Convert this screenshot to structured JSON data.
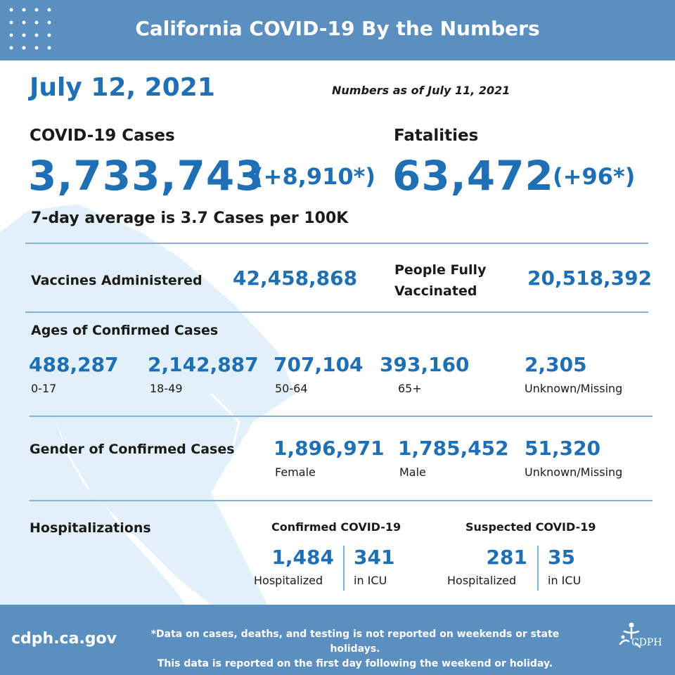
{
  "header": {
    "title": "California COVID-19 By the Numbers"
  },
  "date": "July 12, 2021",
  "as_of": "Numbers as of July 11, 2021",
  "cases": {
    "label": "COVID-19 Cases",
    "total": "3,733,743",
    "change": "(+8,910*)",
    "average": "7-day average is 3.7 Cases per 100K"
  },
  "fatalities": {
    "label": "Fatalities",
    "total": "63,472",
    "change": "(+96*)"
  },
  "vaccines": {
    "administered_label": "Vaccines Administered",
    "administered_value": "42,458,868",
    "fully_label_line1": "People Fully",
    "fully_label_line2": "Vaccinated",
    "fully_value": "20,518,392"
  },
  "ages": {
    "title": "Ages of Confirmed Cases",
    "groups": [
      {
        "value": "488,287",
        "label": "0-17"
      },
      {
        "value": "2,142,887",
        "label": "18-49"
      },
      {
        "value": "707,104",
        "label": "50-64"
      },
      {
        "value": "393,160",
        "label": "65+"
      },
      {
        "value": "2,305",
        "label": "Unknown/Missing"
      }
    ]
  },
  "gender": {
    "title": "Gender of Confirmed Cases",
    "groups": [
      {
        "value": "1,896,971",
        "label": "Female"
      },
      {
        "value": "1,785,452",
        "label": "Male"
      },
      {
        "value": "51,320",
        "label": "Unknown/Missing"
      }
    ]
  },
  "hospitalizations": {
    "title": "Hospitalizations",
    "confirmed": {
      "title": "Confirmed COVID-19",
      "hospitalized": "1,484",
      "hospitalized_label": "Hospitalized",
      "icu": "341",
      "icu_label": "in ICU"
    },
    "suspected": {
      "title": "Suspected COVID-19",
      "hospitalized": "281",
      "hospitalized_label": "Hospitalized",
      "icu": "35",
      "icu_label": "in ICU"
    }
  },
  "footer": {
    "site": "cdph.ca.gov",
    "note_line1": "*Data on cases, deaths, and testing is not reported on weekends or state holidays.",
    "note_line2": "This data is reported on the first day following the weekend or holiday.",
    "logo_text": "CDPH"
  },
  "colors": {
    "header_bg": "#5b8fbf",
    "accent_blue": "#1e6fb4",
    "map_tint": "#e2f0fa",
    "divider": "#86b1d9"
  }
}
